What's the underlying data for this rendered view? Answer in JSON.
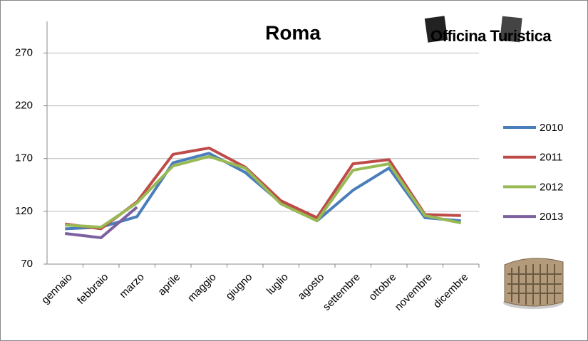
{
  "chart_data": {
    "type": "line",
    "title": "Roma",
    "logo": "Officina Turistica",
    "categories": [
      "gennaio",
      "febbraio",
      "marzo",
      "aprile",
      "maggio",
      "giugno",
      "luglio",
      "agosto",
      "settembre",
      "ottobre",
      "novembre",
      "dicembre"
    ],
    "series": [
      {
        "name": "2010",
        "color": "#4a7ebb",
        "values": [
          103.5,
          105,
          115,
          166,
          175,
          157,
          128,
          111,
          140,
          161,
          114,
          111
        ]
      },
      {
        "name": "2011",
        "color": "#be4b48",
        "values": [
          108,
          103.5,
          129,
          174,
          180,
          162,
          130,
          114,
          165,
          169,
          117,
          116
        ]
      },
      {
        "name": "2012",
        "color": "#98b954",
        "values": [
          107,
          105,
          128,
          163,
          172,
          161,
          127,
          111,
          159,
          165,
          116,
          109
        ]
      },
      {
        "name": "2013",
        "color": "#7d60a0",
        "values": [
          99,
          95,
          124,
          null,
          null,
          null,
          null,
          null,
          null,
          null,
          null,
          null
        ]
      }
    ],
    "ylim": [
      70,
      300
    ],
    "yticks": [
      70,
      120,
      170,
      220,
      270
    ],
    "grid": true,
    "legend": "right"
  }
}
